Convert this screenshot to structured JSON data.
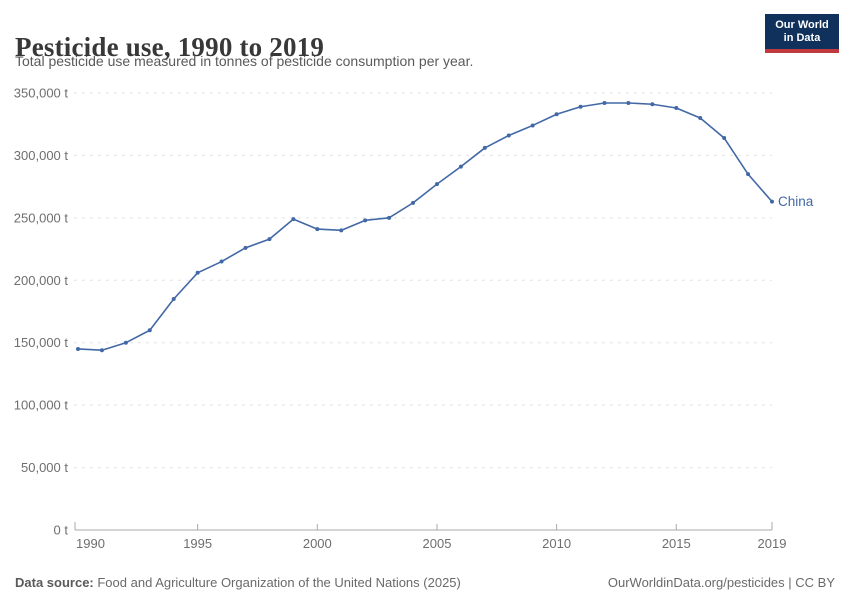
{
  "header": {
    "title": "Pesticide use, 1990 to 2019",
    "subtitle": "Total pesticide use measured in tonnes of pesticide consumption per year.",
    "logo": {
      "line1": "Our World",
      "line2": "in Data",
      "bg_color": "#10315b",
      "accent_color": "#c0393f"
    }
  },
  "chart_data": {
    "type": "line",
    "title": "Pesticide use, 1990 to 2019",
    "xlabel": "",
    "ylabel": "",
    "xlim": [
      1990,
      2019
    ],
    "ylim": [
      0,
      350000
    ],
    "grid": "horizontal-dashed",
    "legend_position": "line-end-label",
    "unit": "t",
    "x_ticks": [
      1990,
      1995,
      2000,
      2005,
      2010,
      2015,
      2019
    ],
    "y_ticks": [
      {
        "value": 0,
        "label": "0 t"
      },
      {
        "value": 50000,
        "label": "50,000 t"
      },
      {
        "value": 100000,
        "label": "100,000 t"
      },
      {
        "value": 150000,
        "label": "150,000 t"
      },
      {
        "value": 200000,
        "label": "200,000 t"
      },
      {
        "value": 250000,
        "label": "250,000 t"
      },
      {
        "value": 300000,
        "label": "300,000 t"
      },
      {
        "value": 350000,
        "label": "350,000 t"
      }
    ],
    "series": [
      {
        "name": "China",
        "color": "#4268a5",
        "x": [
          1990,
          1991,
          1992,
          1993,
          1994,
          1995,
          1996,
          1997,
          1998,
          1999,
          2000,
          2001,
          2002,
          2003,
          2004,
          2005,
          2006,
          2007,
          2008,
          2009,
          2010,
          2011,
          2012,
          2013,
          2014,
          2015,
          2016,
          2017,
          2018,
          2019
        ],
        "values": [
          145000,
          144000,
          150000,
          160000,
          185000,
          206000,
          215000,
          226000,
          233000,
          249000,
          241000,
          240000,
          248000,
          250000,
          262000,
          277000,
          291000,
          306000,
          316000,
          324000,
          333000,
          339000,
          342000,
          342000,
          341000,
          338000,
          330000,
          314000,
          285000,
          263000
        ]
      }
    ]
  },
  "axis_colors": {
    "tick_label": "#6e6e6e",
    "gridline": "#e2e2e2",
    "axis_line": "#a9a9a9"
  },
  "footer": {
    "source_label": "Data source:",
    "source_text": " Food and Agriculture Organization of the United Nations (2025)",
    "credit": "OurWorldinData.org/pesticides | CC BY"
  }
}
